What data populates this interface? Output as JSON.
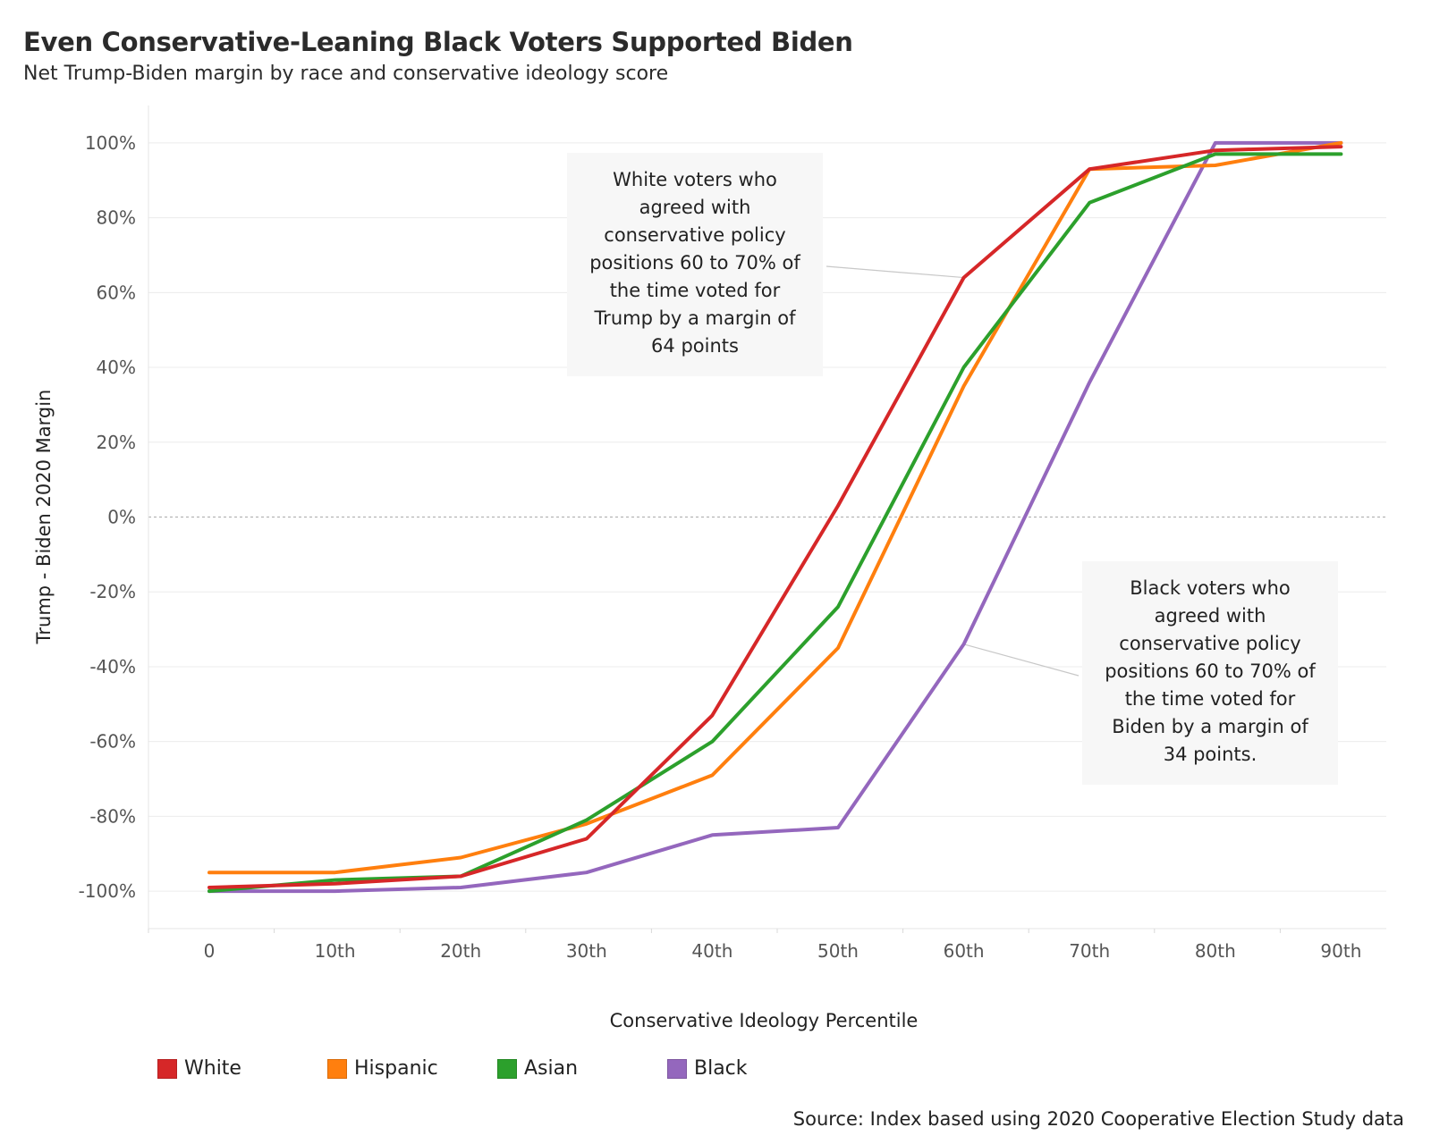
{
  "title": "Even Conservative-Leaning Black Voters Supported Biden",
  "subtitle": "Net Trump-Biden margin by race and conservative ideology score",
  "source": "Source: Index based using 2020 Cooperative Election Study data",
  "chart_data": {
    "type": "line",
    "xlabel": "Conservative Ideology Percentile",
    "ylabel": "Trump - Biden 2020 Margin",
    "categories": [
      "0",
      "10th",
      "20th",
      "30th",
      "40th",
      "50th",
      "60th",
      "70th",
      "80th",
      "90th"
    ],
    "ylim": [
      -110,
      110
    ],
    "yticks": [
      -100,
      -80,
      -60,
      -40,
      -20,
      0,
      20,
      40,
      60,
      80,
      100
    ],
    "ytick_labels": [
      "-100%",
      "-80%",
      "-60%",
      "-40%",
      "-20%",
      "0%",
      "20%",
      "40%",
      "60%",
      "80%",
      "100%"
    ],
    "zero_line": true,
    "grid": true,
    "legend_position": "bottom",
    "series": [
      {
        "name": "White",
        "color": "#d62728",
        "values": [
          -99,
          -98,
          -96,
          -86,
          -53,
          3,
          64,
          93,
          98,
          99
        ]
      },
      {
        "name": "Hispanic",
        "color": "#ff7f0e",
        "values": [
          -95,
          -95,
          -91,
          -82,
          -69,
          -35,
          35,
          93,
          94,
          100
        ]
      },
      {
        "name": "Asian",
        "color": "#2ca02c",
        "values": [
          -100,
          -97,
          -96,
          -81,
          -60,
          -24,
          40,
          84,
          97,
          97
        ]
      },
      {
        "name": "Black",
        "color": "#9467bd",
        "values": [
          -100,
          -100,
          -99,
          -95,
          -85,
          -83,
          -34,
          36,
          100,
          100
        ]
      }
    ],
    "annotations": [
      {
        "lines": [
          "White voters who",
          "agreed with",
          "conservative policy",
          "positions 60 to 70% of",
          "the time voted for",
          "Trump by a margin of",
          "64 points"
        ],
        "target_x": "60th",
        "target_y": 64
      },
      {
        "lines": [
          "Black voters who",
          "agreed with",
          "conservative policy",
          "positions 60 to 70% of",
          "the time voted for",
          "Biden by a margin of",
          "34 points."
        ],
        "target_x": "60th",
        "target_y": -34
      }
    ]
  }
}
